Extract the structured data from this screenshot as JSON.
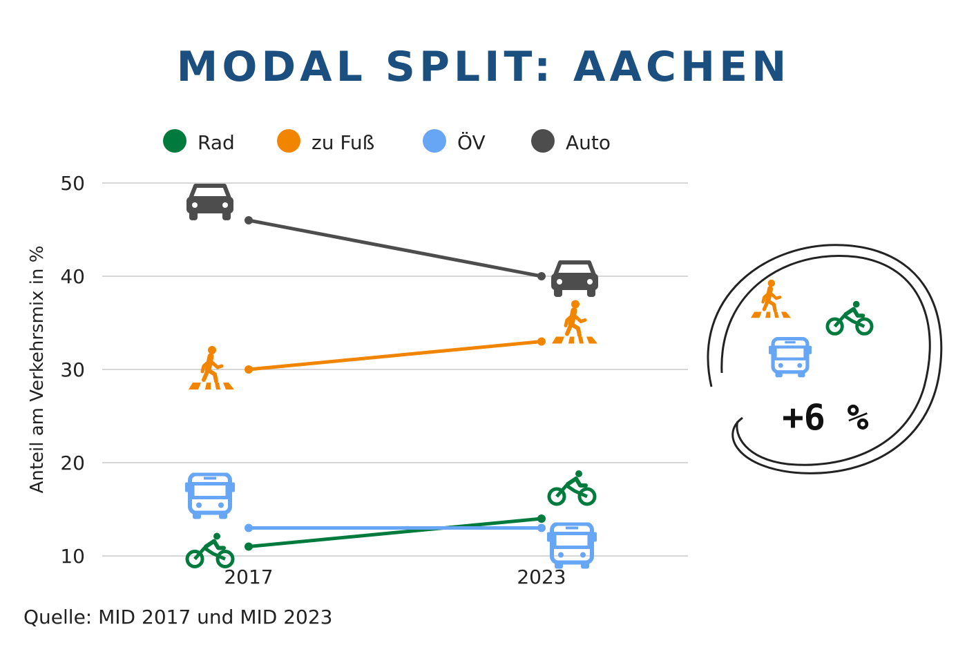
{
  "title": "MODAL SPLIT: AACHEN",
  "source": "Quelle: MID 2017 und MID 2023",
  "annotation": {
    "text": "+6 %",
    "icons": [
      "pedestrian-icon",
      "bicycle-icon",
      "bus-icon"
    ]
  },
  "chart_data": {
    "type": "line",
    "categories": [
      "2017",
      "2023"
    ],
    "ylabel": "Anteil am Verkehrsmix in %",
    "xlabel": "",
    "ylim": [
      10,
      50
    ],
    "yticks": [
      10,
      20,
      30,
      40,
      50
    ],
    "grid": true,
    "legend_position": "top",
    "series": [
      {
        "name": "Rad",
        "values": [
          11,
          14
        ],
        "color": "#007a3d",
        "icon": "bicycle-icon"
      },
      {
        "name": "zu Fuß",
        "values": [
          30,
          33
        ],
        "color": "#f28500",
        "icon": "pedestrian-icon"
      },
      {
        "name": "ÖV",
        "values": [
          13,
          13
        ],
        "color": "#66a6f5",
        "icon": "bus-icon"
      },
      {
        "name": "Auto",
        "values": [
          46,
          40
        ],
        "color": "#4d4d4d",
        "icon": "car-icon"
      }
    ]
  }
}
